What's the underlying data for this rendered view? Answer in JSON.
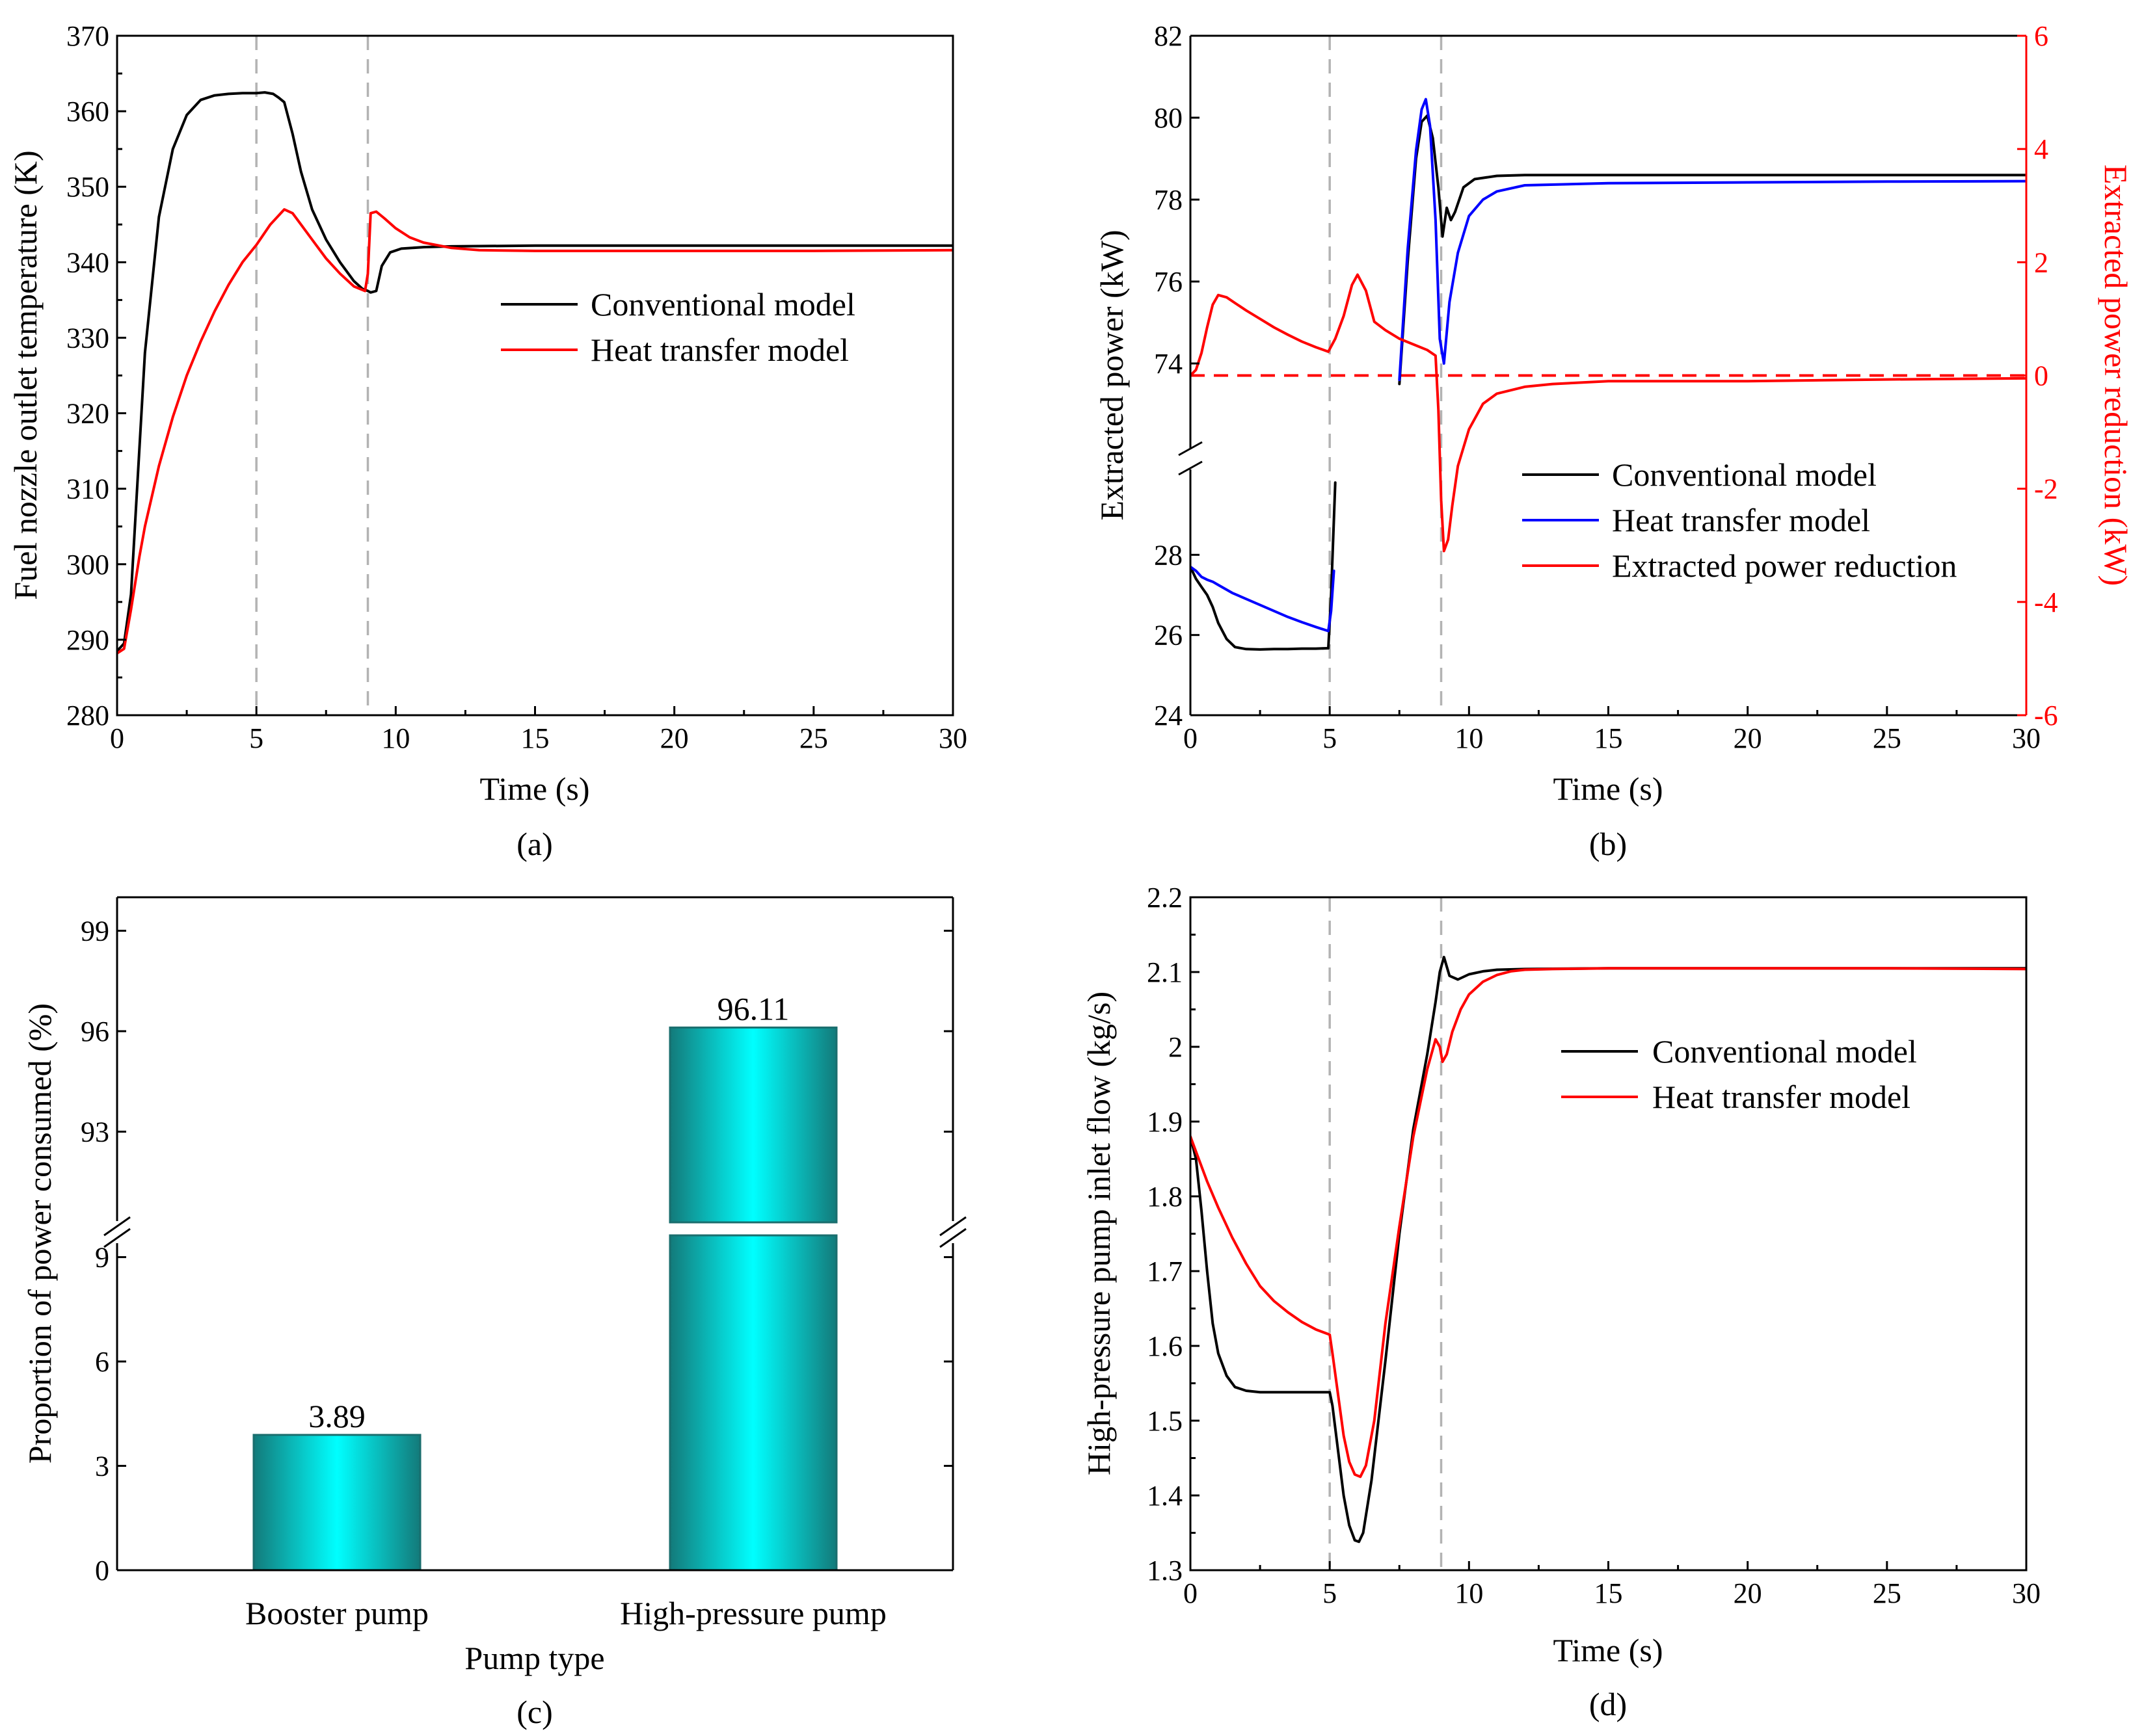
{
  "chart_data": [
    {
      "id": "a",
      "type": "line",
      "caption": "(a)",
      "xlabel": "Time (s)",
      "ylabel": "Fuel nozzle outlet temperature (K)",
      "xlim": [
        0,
        30
      ],
      "ylim": [
        280,
        370
      ],
      "xticks": [
        0,
        5,
        10,
        15,
        20,
        25,
        30
      ],
      "yticks": [
        280,
        290,
        300,
        310,
        320,
        330,
        340,
        350,
        360,
        370
      ],
      "vlines": [
        5,
        9
      ],
      "legend_position": "center-right",
      "colors": {
        "Conventional model": "#000000",
        "Heat transfer model": "#ff0000"
      },
      "series": [
        {
          "name": "Conventional model",
          "x": [
            0,
            0.25,
            0.5,
            0.75,
            1,
            1.5,
            2,
            2.5,
            3,
            3.5,
            4,
            4.5,
            5,
            5.3,
            5.6,
            5.8,
            6,
            6.3,
            6.6,
            7,
            7.5,
            8,
            8.5,
            8.8,
            9,
            9.1,
            9.3,
            9.5,
            9.8,
            10.2,
            11,
            12,
            15,
            20,
            25,
            30
          ],
          "y": [
            288.5,
            289.5,
            296,
            312,
            328,
            346,
            355,
            359.5,
            361.5,
            362.1,
            362.3,
            362.4,
            362.4,
            362.5,
            362.3,
            361.8,
            361.2,
            357,
            352,
            347,
            343,
            340,
            337.5,
            336.5,
            336.2,
            336.0,
            336.2,
            339.5,
            341.3,
            341.8,
            342.0,
            342.1,
            342.2,
            342.2,
            342.2,
            342.2
          ]
        },
        {
          "name": "Heat transfer model",
          "x": [
            0,
            0.25,
            0.5,
            0.8,
            1,
            1.5,
            2,
            2.5,
            3,
            3.5,
            4,
            4.5,
            5,
            5.5,
            6,
            6.3,
            6.6,
            7,
            7.5,
            8,
            8.5,
            8.9,
            9.0,
            9.1,
            9.3,
            9.6,
            10,
            10.5,
            11,
            12,
            13,
            15,
            20,
            25,
            30
          ],
          "y": [
            288.2,
            288.8,
            294,
            301,
            305,
            313,
            319.5,
            325,
            329.5,
            333.5,
            337,
            340,
            342.3,
            345,
            347.0,
            346.5,
            345,
            343,
            340.5,
            338.5,
            336.8,
            336.2,
            338.5,
            346.5,
            346.7,
            345.8,
            344.5,
            343.3,
            342.6,
            341.9,
            341.6,
            341.5,
            341.5,
            341.5,
            341.6
          ]
        }
      ]
    },
    {
      "id": "b",
      "type": "line",
      "caption": "(b)",
      "xlabel": "Time (s)",
      "ylabel": "Extracted power (kW)",
      "ylabel_right": "Extracted power reduction (kW)",
      "xlim": [
        0,
        30
      ],
      "ylim_lower": [
        24,
        30
      ],
      "ylim_upper": [
        72,
        82
      ],
      "ylim_right": [
        -6,
        6
      ],
      "axis_break": true,
      "xticks": [
        0,
        5,
        10,
        15,
        20,
        25,
        30
      ],
      "yticks_lower": [
        24,
        26,
        28
      ],
      "yticks_upper": [
        74,
        76,
        78,
        80,
        82
      ],
      "yticks_right": [
        -6,
        -4,
        -2,
        0,
        2,
        4,
        6
      ],
      "vlines": [
        5,
        9
      ],
      "hline_right": 0,
      "legend_position": "lower-right",
      "colors": {
        "Conventional model": "#000000",
        "Heat transfer model": "#0000ff",
        "Extracted power reduction": "#ff0000",
        "right_axis": "#ff0000"
      },
      "series": [
        {
          "name": "Conventional model",
          "axis": "left",
          "segments": [
            {
              "x": [
                0,
                0.2,
                0.4,
                0.6,
                0.8,
                1,
                1.3,
                1.6,
                2,
                2.5,
                3,
                3.5,
                4,
                4.5,
                4.95
              ],
              "y": [
                27.7,
                27.4,
                27.2,
                27.0,
                26.7,
                26.3,
                25.9,
                25.7,
                25.65,
                25.64,
                25.65,
                25.65,
                25.66,
                25.66,
                25.67
              ]
            },
            {
              "x": [
                4.95,
                5.05,
                5.2
              ],
              "y": [
                25.67,
                27.0,
                29.8
              ]
            },
            {
              "x": [
                7.5,
                7.8,
                8.1,
                8.3,
                8.5,
                8.7,
                8.9,
                9.05,
                9.2,
                9.35,
                9.5,
                9.8,
                10.2,
                11,
                12,
                15,
                20,
                25,
                30
              ],
              "y": [
                73.5,
                76.5,
                79.0,
                79.9,
                80.05,
                79.5,
                78.3,
                77.1,
                77.8,
                77.5,
                77.7,
                78.3,
                78.5,
                78.58,
                78.6,
                78.6,
                78.6,
                78.6,
                78.6
              ]
            }
          ]
        },
        {
          "name": "Heat transfer model",
          "axis": "left",
          "segments": [
            {
              "x": [
                0,
                0.2,
                0.4,
                0.6,
                0.8,
                1,
                1.5,
                2,
                2.5,
                3,
                3.5,
                4,
                4.5,
                4.95
              ],
              "y": [
                27.7,
                27.6,
                27.45,
                27.38,
                27.33,
                27.25,
                27.05,
                26.9,
                26.75,
                26.6,
                26.45,
                26.32,
                26.2,
                26.1
              ]
            },
            {
              "x": [
                4.95,
                5.05,
                5.15
              ],
              "y": [
                26.1,
                26.6,
                27.6
              ]
            },
            {
              "x": [
                7.5,
                7.8,
                8.1,
                8.3,
                8.45,
                8.6,
                8.8,
                8.95,
                9.1,
                9.3,
                9.6,
                10,
                10.5,
                11,
                12,
                15,
                20,
                25,
                30
              ],
              "y": [
                73.6,
                76.8,
                79.2,
                80.2,
                80.45,
                79.8,
                77.5,
                74.6,
                74.0,
                75.5,
                76.7,
                77.6,
                78.0,
                78.2,
                78.35,
                78.4,
                78.42,
                78.44,
                78.45
              ]
            }
          ]
        },
        {
          "name": "Extracted power reduction",
          "axis": "right",
          "segments": [
            {
              "x": [
                0,
                0.2,
                0.4,
                0.6,
                0.8,
                1,
                1.3,
                1.6,
                2,
                2.5,
                3,
                3.5,
                4,
                4.5,
                4.95,
                5.2,
                5.5,
                5.8,
                6,
                6.3,
                6.6,
                7,
                7.5,
                8,
                8.5,
                8.8,
                8.9,
                9.0,
                9.1,
                9.25,
                9.4,
                9.6,
                10,
                10.5,
                11,
                12,
                13,
                15,
                20,
                25,
                30
              ],
              "y": [
                0,
                0.1,
                0.4,
                0.85,
                1.25,
                1.42,
                1.38,
                1.28,
                1.15,
                1.0,
                0.85,
                0.72,
                0.6,
                0.5,
                0.42,
                0.65,
                1.05,
                1.6,
                1.78,
                1.5,
                0.95,
                0.8,
                0.65,
                0.55,
                0.45,
                0.35,
                -0.6,
                -2.2,
                -3.1,
                -2.9,
                -2.3,
                -1.6,
                -0.95,
                -0.5,
                -0.32,
                -0.2,
                -0.15,
                -0.1,
                -0.1,
                -0.07,
                -0.05
              ]
            }
          ]
        }
      ]
    },
    {
      "id": "c",
      "type": "bar",
      "caption": "(c)",
      "xlabel": "Pump type",
      "ylabel": "Proportion of power consumed (%)",
      "categories": [
        "Booster pump",
        "High-pressure pump"
      ],
      "values": [
        3.89,
        96.11
      ],
      "value_labels": [
        "3.89",
        "96.11"
      ],
      "ylim_lower": [
        0,
        10
      ],
      "ylim_upper": [
        90,
        100
      ],
      "axis_break": true,
      "yticks_lower": [
        0,
        3,
        6,
        9
      ],
      "yticks_upper": [
        93,
        96,
        99
      ],
      "colors": {
        "bar_edge": "#1a6e6e",
        "bar_dark": "#137a7a",
        "bar_light": "#00ffff"
      }
    },
    {
      "id": "d",
      "type": "line",
      "caption": "(d)",
      "xlabel": "Time (s)",
      "ylabel": "High-pressure pump inlet flow (kg/s)",
      "xlim": [
        0,
        30
      ],
      "ylim": [
        1.3,
        2.2
      ],
      "xticks": [
        0,
        5,
        10,
        15,
        20,
        25,
        30
      ],
      "yticks": [
        1.3,
        1.4,
        1.5,
        1.6,
        1.7,
        1.8,
        1.9,
        2.0,
        2.1,
        2.2
      ],
      "vlines": [
        5,
        9
      ],
      "legend_position": "center-right",
      "colors": {
        "Conventional model": "#000000",
        "Heat transfer model": "#ff0000"
      },
      "series": [
        {
          "name": "Conventional model",
          "x": [
            0,
            0.2,
            0.4,
            0.6,
            0.8,
            1,
            1.3,
            1.6,
            2,
            2.5,
            3,
            3.5,
            4,
            4.5,
            5,
            5.1,
            5.3,
            5.5,
            5.7,
            5.9,
            6.05,
            6.2,
            6.5,
            7,
            7.5,
            8,
            8.5,
            8.8,
            8.95,
            9.1,
            9.3,
            9.6,
            10,
            10.5,
            11,
            12,
            15,
            20,
            25,
            30
          ],
          "y": [
            1.88,
            1.85,
            1.78,
            1.7,
            1.63,
            1.59,
            1.56,
            1.545,
            1.54,
            1.538,
            1.538,
            1.538,
            1.538,
            1.538,
            1.538,
            1.52,
            1.46,
            1.4,
            1.36,
            1.34,
            1.338,
            1.35,
            1.42,
            1.58,
            1.75,
            1.89,
            1.99,
            2.06,
            2.1,
            2.12,
            2.095,
            2.09,
            2.097,
            2.101,
            2.103,
            2.104,
            2.105,
            2.105,
            2.105,
            2.105
          ]
        },
        {
          "name": "Heat transfer model",
          "x": [
            0,
            0.3,
            0.6,
            1,
            1.5,
            2,
            2.5,
            3,
            3.5,
            4,
            4.5,
            5,
            5.1,
            5.3,
            5.5,
            5.7,
            5.9,
            6.1,
            6.3,
            6.6,
            7,
            7.5,
            8,
            8.5,
            8.8,
            8.95,
            9.05,
            9.2,
            9.4,
            9.7,
            10,
            10.5,
            11,
            11.5,
            12,
            13,
            15,
            20,
            25,
            30
          ],
          "y": [
            1.88,
            1.85,
            1.82,
            1.785,
            1.745,
            1.71,
            1.68,
            1.66,
            1.645,
            1.632,
            1.622,
            1.615,
            1.59,
            1.535,
            1.48,
            1.445,
            1.428,
            1.425,
            1.44,
            1.5,
            1.63,
            1.76,
            1.88,
            1.97,
            2.01,
            2.0,
            1.98,
            1.99,
            2.02,
            2.05,
            2.07,
            2.087,
            2.096,
            2.101,
            2.103,
            2.104,
            2.105,
            2.105,
            2.105,
            2.104
          ]
        }
      ]
    }
  ]
}
